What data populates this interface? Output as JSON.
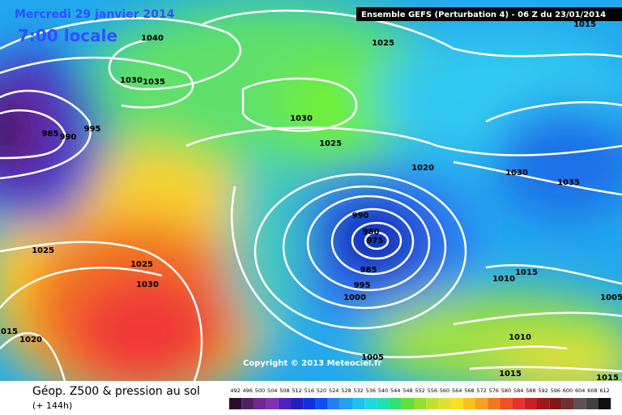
{
  "header": {
    "date": "Mercredi 29 janvier 2014",
    "time": "7:00 locale",
    "model": "Ensemble GEFS (Perturbation 4)  -  06 Z du 23/01/2014"
  },
  "isobar_labels": [
    "1040",
    "1035",
    "1030",
    "1025",
    "1030",
    "1025",
    "1020",
    "1030",
    "1035",
    "990",
    "980",
    "975",
    "985",
    "995",
    "1000",
    "1015",
    "1010",
    "1005",
    "1010",
    "1015",
    "1015",
    "1005",
    "1025",
    "1025",
    "1030",
    "1020",
    "1015",
    "990",
    "995",
    "985",
    "1015"
  ],
  "footer": {
    "copyright": "Copyright © 2013 Meteociel.fr",
    "legend_title": "Géop. Z500 & pression au sol",
    "lead_time": "(+ 144h)",
    "scale": [
      492,
      496,
      500,
      504,
      508,
      512,
      516,
      520,
      524,
      528,
      532,
      536,
      540,
      544,
      548,
      552,
      556,
      560,
      564,
      568,
      572,
      576,
      580,
      584,
      588,
      592,
      596,
      600,
      604,
      608,
      612
    ]
  }
}
